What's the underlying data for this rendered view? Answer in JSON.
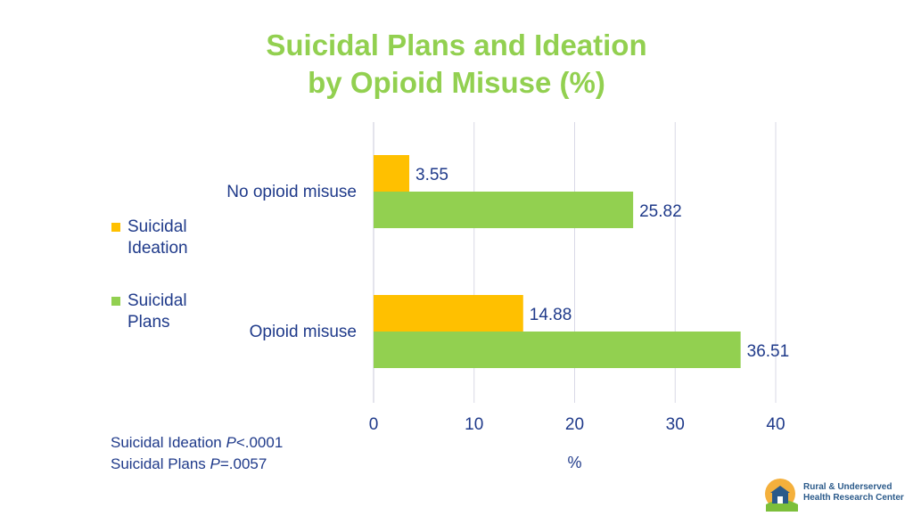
{
  "chart_data": {
    "type": "bar",
    "orientation": "horizontal",
    "title_lines": [
      "Suicidal Plans and Ideation",
      "by Opioid Misuse (%)"
    ],
    "categories": [
      "No opioid misuse",
      "Opioid misuse"
    ],
    "series": [
      {
        "name": "Suicidal Ideation",
        "color": "#ffc000",
        "values": [
          3.55,
          14.88
        ]
      },
      {
        "name": "Suicidal Plans",
        "color": "#92d050",
        "values": [
          25.82,
          36.51
        ]
      }
    ],
    "xlabel": "%",
    "xlim": [
      0,
      40
    ],
    "xticks": [
      0,
      10,
      20,
      30,
      40
    ],
    "gridlines": true,
    "legend_position": "left",
    "data_labels": true
  },
  "legend": {
    "items": [
      {
        "line1": "Suicidal",
        "line2": "Ideation",
        "color": "#ffc000"
      },
      {
        "line1": "Suicidal",
        "line2": "Plans",
        "color": "#92d050"
      }
    ]
  },
  "notes": {
    "ideation_label": "Suicidal Ideation ",
    "ideation_p": "P",
    "ideation_value": "<.0001",
    "plans_label": "Suicidal Plans ",
    "plans_p": "P",
    "plans_value": "=.0057"
  },
  "logo": {
    "line1": "Rural & Underserved",
    "line2": "Health Research Center",
    "icon": "barn-sun-logo-icon"
  },
  "colors": {
    "title": "#92d050",
    "text": "#1f3a8a",
    "grid": "#d9d9e6"
  }
}
